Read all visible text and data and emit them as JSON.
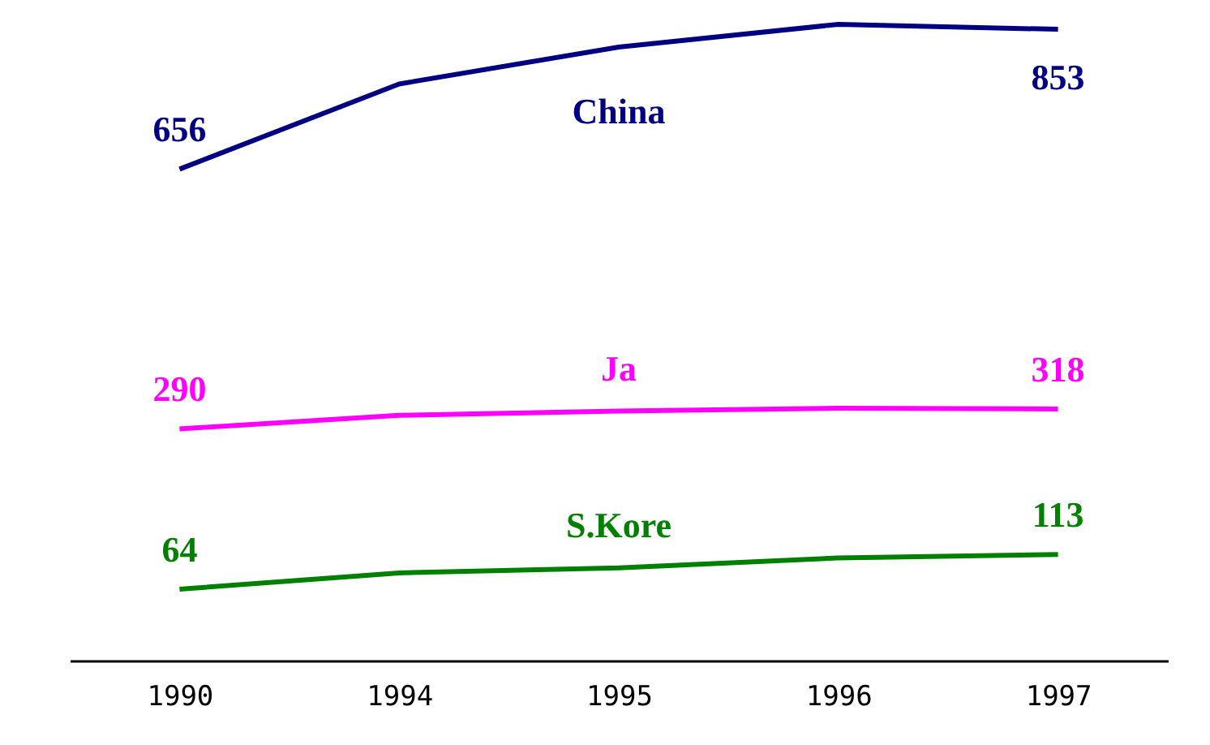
{
  "chart_data": {
    "type": "line",
    "categories": [
      "1990",
      "1994",
      "1995",
      "1996",
      "1997"
    ],
    "series": [
      {
        "name": "China",
        "color": "#000080",
        "values": [
          656,
          776,
          828,
          860,
          853
        ],
        "value_labels": [
          "656",
          null,
          null,
          null,
          "853"
        ]
      },
      {
        "name": "Ja",
        "color": "#ff00ff",
        "values": [
          290,
          309,
          315,
          319,
          318
        ],
        "value_labels": [
          "290",
          null,
          null,
          null,
          "318"
        ]
      },
      {
        "name": "S.Kore",
        "color": "#008000",
        "values": [
          64,
          87,
          94,
          108,
          113
        ],
        "value_labels": [
          "64",
          null,
          null,
          null,
          "113"
        ]
      }
    ],
    "grid": false,
    "marker": "none",
    "line_style": "solid",
    "tick_labels": "x"
  }
}
